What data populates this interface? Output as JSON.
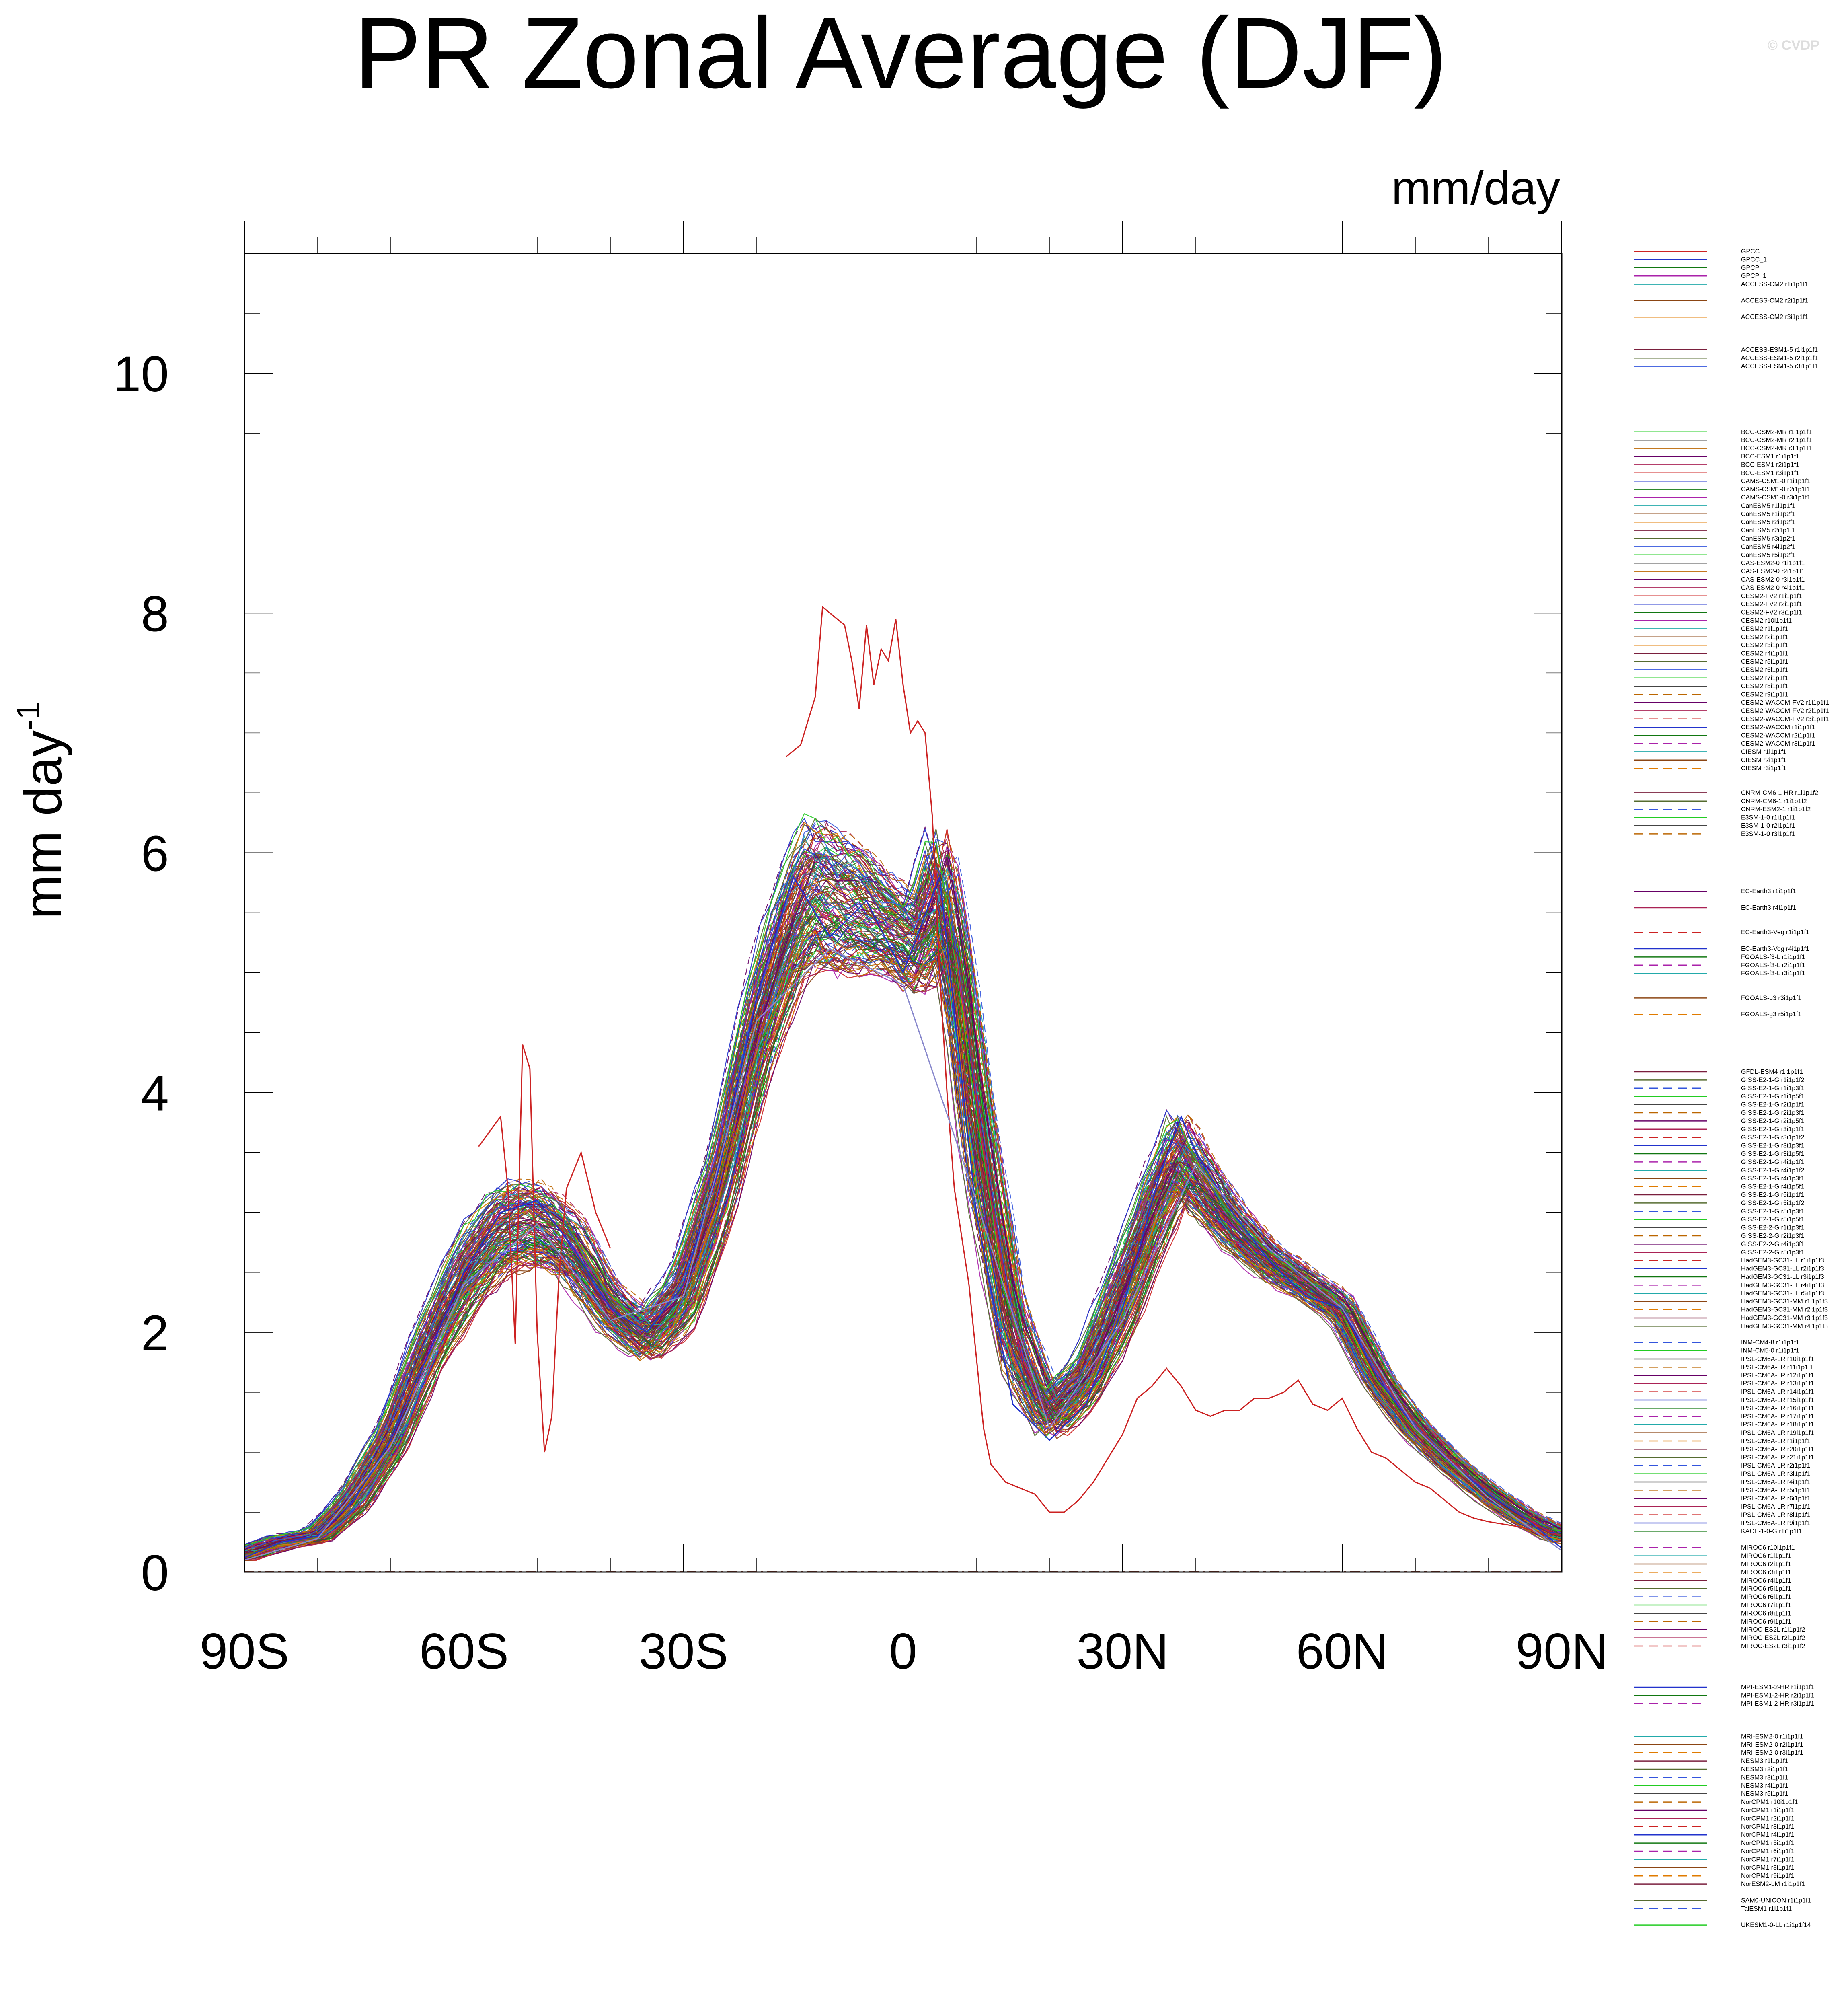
{
  "chart_data": {
    "type": "line",
    "title": "PR Zonal Average (DJF)",
    "units": "mm/day",
    "ylabel": "mm day",
    "ylabel_superscript": "-1",
    "xlim": [
      -90,
      90
    ],
    "ylim": [
      0,
      11
    ],
    "xticks": [
      {
        "value": -90,
        "label": "90S"
      },
      {
        "value": -60,
        "label": "60S"
      },
      {
        "value": -30,
        "label": "30S"
      },
      {
        "value": 0,
        "label": "0"
      },
      {
        "value": 30,
        "label": "30N"
      },
      {
        "value": 60,
        "label": "60N"
      },
      {
        "value": 90,
        "label": "90N"
      }
    ],
    "yticks": [
      0,
      2,
      4,
      6,
      8,
      10
    ],
    "yticks_minor_step": 0.5,
    "grid": false,
    "legend_position": "right",
    "reference_series": [
      {
        "name": "GPCC",
        "color": "#cc2222",
        "x": [
          -58,
          -55,
          -54,
          -53,
          -52,
          -51,
          -50,
          -49,
          -48,
          -47,
          -46,
          -44,
          -42,
          -40
        ],
        "values": [
          3.55,
          3.8,
          3.2,
          1.9,
          4.4,
          4.2,
          2.0,
          1.0,
          1.3,
          2.5,
          3.2,
          3.5,
          3.0,
          2.7
        ]
      },
      {
        "name": "GPCC_1",
        "color": "#cc2222",
        "x": [
          -16,
          -14,
          -12,
          -11,
          -10,
          -9,
          -8,
          -7,
          -6,
          -5,
          -4,
          -3,
          -2,
          -1,
          0,
          1,
          2,
          3,
          4,
          5,
          6,
          7,
          8,
          9,
          10,
          11,
          12,
          14,
          16,
          18,
          20,
          22,
          24,
          26,
          28,
          30,
          32,
          34,
          36,
          38,
          40,
          42,
          44,
          46,
          48,
          50,
          52,
          54,
          56,
          58,
          60,
          62,
          64,
          66,
          68,
          70,
          72,
          74,
          76,
          78,
          80,
          82,
          84,
          86,
          88
        ],
        "values": [
          6.8,
          6.9,
          7.3,
          8.05,
          8.0,
          7.95,
          7.9,
          7.6,
          7.2,
          7.9,
          7.4,
          7.7,
          7.6,
          7.95,
          7.4,
          7.0,
          7.1,
          7.0,
          6.3,
          5.0,
          4.0,
          3.2,
          2.8,
          2.4,
          1.8,
          1.2,
          0.9,
          0.75,
          0.7,
          0.65,
          0.5,
          0.5,
          0.6,
          0.75,
          0.95,
          1.15,
          1.45,
          1.55,
          1.7,
          1.55,
          1.35,
          1.3,
          1.35,
          1.35,
          1.45,
          1.45,
          1.5,
          1.6,
          1.4,
          1.35,
          1.45,
          1.2,
          1.0,
          0.95,
          0.85,
          0.75,
          0.7,
          0.6,
          0.5,
          0.45,
          0.42,
          0.4,
          0.38,
          0.35,
          0.3
        ]
      },
      {
        "name": "GPCP",
        "color": "#2233cc",
        "x": [
          -90,
          -85,
          -80,
          -75,
          -70,
          -65,
          -60,
          -55,
          -50,
          -45,
          -40,
          -35,
          -30,
          -25,
          -20,
          -15,
          -10,
          -5,
          0,
          5,
          10,
          15,
          20,
          25,
          30,
          35,
          38,
          40,
          45,
          50,
          55,
          60,
          65,
          70,
          75,
          80,
          85,
          90
        ],
        "values": [
          0.12,
          0.25,
          0.3,
          0.6,
          1.1,
          1.8,
          2.5,
          3.0,
          3.1,
          2.7,
          2.2,
          2.0,
          2.4,
          3.4,
          4.8,
          5.8,
          5.3,
          5.6,
          5.0,
          5.8,
          3.0,
          1.4,
          1.1,
          1.4,
          2.2,
          3.3,
          3.8,
          3.5,
          3.0,
          2.6,
          2.3,
          2.2,
          1.6,
          1.2,
          0.9,
          0.65,
          0.45,
          0.2
        ]
      },
      {
        "name": "GPCP_1",
        "color": "#8888cc",
        "x": [
          -90,
          -80,
          -70,
          -60,
          -50,
          -40,
          -30,
          -20,
          -10,
          0,
          10,
          20,
          30,
          40,
          50,
          60,
          70,
          80,
          90
        ],
        "values": [
          0.1,
          0.28,
          1.05,
          2.4,
          2.9,
          2.1,
          2.3,
          4.6,
          5.2,
          4.9,
          3.1,
          1.2,
          2.1,
          3.4,
          2.7,
          2.2,
          1.2,
          0.62,
          0.18
        ]
      }
    ],
    "ensemble_envelope": {
      "x": [
        -90,
        -85,
        -80,
        -75,
        -70,
        -65,
        -60,
        -55,
        -52,
        -50,
        -47,
        -45,
        -40,
        -35,
        -30,
        -25,
        -20,
        -15,
        -12,
        -10,
        -5,
        -2,
        0,
        2,
        4,
        5,
        6,
        8,
        10,
        15,
        20,
        25,
        30,
        35,
        38,
        40,
        45,
        50,
        55,
        60,
        65,
        70,
        75,
        80,
        85,
        90
      ],
      "center": [
        0.15,
        0.25,
        0.3,
        0.6,
        1.1,
        1.85,
        2.45,
        2.85,
        2.9,
        2.9,
        2.8,
        2.7,
        2.2,
        1.95,
        2.3,
        3.2,
        4.5,
        5.4,
        5.7,
        5.6,
        5.5,
        5.4,
        5.3,
        5.2,
        5.5,
        5.7,
        5.5,
        4.8,
        3.8,
        2.0,
        1.3,
        1.6,
        2.3,
        3.1,
        3.5,
        3.3,
        2.9,
        2.6,
        2.4,
        2.2,
        1.6,
        1.2,
        0.9,
        0.65,
        0.45,
        0.3
      ],
      "spread": [
        0.05,
        0.05,
        0.05,
        0.1,
        0.15,
        0.2,
        0.3,
        0.35,
        0.35,
        0.35,
        0.3,
        0.3,
        0.2,
        0.2,
        0.25,
        0.3,
        0.4,
        0.5,
        0.6,
        0.6,
        0.5,
        0.4,
        0.4,
        0.4,
        0.5,
        0.55,
        0.5,
        0.5,
        0.6,
        0.35,
        0.2,
        0.2,
        0.3,
        0.3,
        0.35,
        0.3,
        0.2,
        0.15,
        0.12,
        0.12,
        0.1,
        0.08,
        0.06,
        0.06,
        0.06,
        0.06
      ],
      "member_count": 150
    },
    "legend_groups": [
      {
        "entries": [
          "GPCC",
          "GPCC_1",
          "GPCP",
          "GPCP_1",
          "ACCESS-CM2 r1i1p1f1"
        ],
        "gap_after": 1
      },
      {
        "entries": [
          "ACCESS-CM2 r2i1p1f1"
        ],
        "gap_after": 1
      },
      {
        "entries": [
          "ACCESS-CM2 r3i1p1f1"
        ],
        "gap_after": 3
      },
      {
        "entries": [
          "ACCESS-ESM1-5 r1i1p1f1",
          "ACCESS-ESM1-5 r2i1p1f1",
          "ACCESS-ESM1-5 r3i1p1f1"
        ],
        "gap_after": 7
      },
      {
        "entries": [
          "BCC-CSM2-MR r1i1p1f1",
          "BCC-CSM2-MR r2i1p1f1",
          "BCC-CSM2-MR r3i1p1f1",
          "BCC-ESM1 r1i1p1f1",
          "BCC-ESM1 r2i1p1f1",
          "BCC-ESM1 r3i1p1f1",
          "CAMS-CSM1-0 r1i1p1f1",
          "CAMS-CSM1-0 r2i1p1f1",
          "CAMS-CSM1-0 r3i1p1f1",
          "CanESM5 r1i1p1f1",
          "CanESM5 r1i1p2f1",
          "CanESM5 r2i1p2f1",
          "CanESM5 r2i1p1f1",
          "CanESM5 r3i1p2f1",
          "CanESM5 r4i1p2f1",
          "CanESM5 r5i1p2f1",
          "CAS-ESM2-0 r1i1p1f1",
          "CAS-ESM2-0 r2i1p1f1",
          "CAS-ESM2-0 r3i1p1f1",
          "CAS-ESM2-0 r4i1p1f1",
          "CESM2-FV2 r1i1p1f1",
          "CESM2-FV2 r2i1p1f1",
          "CESM2-FV2 r3i1p1f1",
          "CESM2 r10i1p1f1",
          "CESM2 r1i1p1f1",
          "CESM2 r2i1p1f1",
          "CESM2 r3i1p1f1",
          "CESM2 r4i1p1f1",
          "CESM2 r5i1p1f1",
          "CESM2 r6i1p1f1",
          "CESM2 r7i1p1f1",
          "CESM2 r8i1p1f1",
          "CESM2 r9i1p1f1",
          "CESM2-WACCM-FV2 r1i1p1f1",
          "CESM2-WACCM-FV2 r2i1p1f1",
          "CESM2-WACCM-FV2 r3i1p1f1",
          "CESM2-WACCM r1i1p1f1",
          "CESM2-WACCM r2i1p1f1",
          "CESM2-WACCM r3i1p1f1",
          "CIESM r1i1p1f1",
          "CIESM r2i1p1f1",
          "CIESM r3i1p1f1"
        ],
        "gap_after": 2
      },
      {
        "entries": [
          "CNRM-CM6-1-HR r1i1p1f2",
          "CNRM-CM6-1 r1i1p1f2",
          "CNRM-ESM2-1 r1i1p1f2",
          "E3SM-1-0 r1i1p1f1",
          "E3SM-1-0 r2i1p1f1",
          "E3SM-1-0 r3i1p1f1"
        ],
        "gap_after": 6
      },
      {
        "entries": [
          "EC-Earth3 r1i1p1f1"
        ],
        "gap_after": 1
      },
      {
        "entries": [
          "EC-Earth3 r4i1p1f1"
        ],
        "gap_after": 2
      },
      {
        "entries": [
          "EC-Earth3-Veg r1i1p1f1"
        ],
        "gap_after": 1
      },
      {
        "entries": [
          "EC-Earth3-Veg r4i1p1f1",
          "FGOALS-f3-L r1i1p1f1",
          "FGOALS-f3-L r2i1p1f1",
          "FGOALS-f3-L r3i1p1f1"
        ],
        "gap_after": 2
      },
      {
        "entries": [
          "FGOALS-g3 r3i1p1f1"
        ],
        "gap_after": 1
      },
      {
        "entries": [
          "FGOALS-g3 r5i1p1f1"
        ],
        "gap_after": 6
      },
      {
        "entries": [
          "GFDL-ESM4 r1i1p1f1",
          "GISS-E2-1-G r1i1p1f2",
          "GISS-E2-1-G r1i1p3f1",
          "GISS-E2-1-G r1i1p5f1",
          "GISS-E2-1-G r2i1p1f1",
          "GISS-E2-1-G r2i1p3f1",
          "GISS-E2-1-G r2i1p5f1",
          "GISS-E2-1-G r3i1p1f1",
          "GISS-E2-1-G r3i1p1f2",
          "GISS-E2-1-G r3i1p3f1",
          "GISS-E2-1-G r3i1p5f1",
          "GISS-E2-1-G r4i1p1f1",
          "GISS-E2-1-G r4i1p1f2",
          "GISS-E2-1-G r4i1p3f1",
          "GISS-E2-1-G r4i1p5f1",
          "GISS-E2-1-G r5i1p1f1",
          "GISS-E2-1-G r5i1p1f2",
          "GISS-E2-1-G r5i1p3f1",
          "GISS-E2-1-G r5i1p5f1",
          "GISS-E2-2-G r1i1p3f1",
          "GISS-E2-2-G r2i1p3f1",
          "GISS-E2-2-G r4i1p3f1",
          "GISS-E2-2-G r5i1p3f1",
          "HadGEM3-GC31-LL r1i1p1f3",
          "HadGEM3-GC31-LL r2i1p1f3",
          "HadGEM3-GC31-LL r3i1p1f3",
          "HadGEM3-GC31-LL r4i1p1f3",
          "HadGEM3-GC31-LL r5i1p1f3",
          "HadGEM3-GC31-MM r1i1p1f3",
          "HadGEM3-GC31-MM r2i1p1f3",
          "HadGEM3-GC31-MM r3i1p1f3",
          "HadGEM3-GC31-MM r4i1p1f3"
        ],
        "gap_after": 1
      },
      {
        "entries": [
          "INM-CM4-8 r1i1p1f1",
          "INM-CM5-0 r1i1p1f1",
          "IPSL-CM6A-LR r10i1p1f1",
          "IPSL-CM6A-LR r11i1p1f1",
          "IPSL-CM6A-LR r12i1p1f1",
          "IPSL-CM6A-LR r13i1p1f1",
          "IPSL-CM6A-LR r14i1p1f1",
          "IPSL-CM6A-LR r15i1p1f1",
          "IPSL-CM6A-LR r16i1p1f1",
          "IPSL-CM6A-LR r17i1p1f1",
          "IPSL-CM6A-LR r18i1p1f1",
          "IPSL-CM6A-LR r19i1p1f1",
          "IPSL-CM6A-LR r1i1p1f1",
          "IPSL-CM6A-LR r20i1p1f1",
          "IPSL-CM6A-LR r21i1p1f1",
          "IPSL-CM6A-LR r2i1p1f1",
          "IPSL-CM6A-LR r3i1p1f1",
          "IPSL-CM6A-LR r4i1p1f1",
          "IPSL-CM6A-LR r5i1p1f1",
          "IPSL-CM6A-LR r6i1p1f1",
          "IPSL-CM6A-LR r7i1p1f1",
          "IPSL-CM6A-LR r8i1p1f1",
          "IPSL-CM6A-LR r9i1p1f1",
          "KACE-1-0-G r1i1p1f1"
        ],
        "gap_after": 1
      },
      {
        "entries": [
          "MIROC6 r10i1p1f1",
          "MIROC6 r1i1p1f1",
          "MIROC6 r2i1p1f1",
          "MIROC6 r3i1p1f1",
          "MIROC6 r4i1p1f1",
          "MIROC6 r5i1p1f1",
          "MIROC6 r6i1p1f1",
          "MIROC6 r7i1p1f1",
          "MIROC6 r8i1p1f1",
          "MIROC6 r9i1p1f1",
          "MIROC-ES2L r1i1p1f2",
          "MIROC-ES2L r2i1p1f2",
          "MIROC-ES2L r3i1p1f2"
        ],
        "gap_after": 4
      },
      {
        "entries": [
          "MPI-ESM1-2-HR r1i1p1f1",
          "MPI-ESM1-2-HR r2i1p1f1",
          "MPI-ESM1-2-HR r3i1p1f1"
        ],
        "gap_after": 3
      },
      {
        "entries": [
          "MRI-ESM2-0 r1i1p1f1",
          "MRI-ESM2-0 r2i1p1f1",
          "MRI-ESM2-0 r3i1p1f1",
          "NESM3 r1i1p1f1",
          "NESM3 r2i1p1f1",
          "NESM3 r3i1p1f1",
          "NESM3 r4i1p1f1",
          "NESM3 r5i1p1f1",
          "NorCPM1 r10i1p1f1",
          "NorCPM1 r1i1p1f1",
          "NorCPM1 r2i1p1f1",
          "NorCPM1 r3i1p1f1",
          "NorCPM1 r4i1p1f1",
          "NorCPM1 r5i1p1f1",
          "NorCPM1 r6i1p1f1",
          "NorCPM1 r7i1p1f1",
          "NorCPM1 r8i1p1f1",
          "NorCPM1 r9i1p1f1",
          "NorESM2-LM r1i1p1f1"
        ],
        "gap_after": 1
      },
      {
        "entries": [
          "SAM0-UNICON r1i1p1f1",
          "TaiESM1 r1i1p1f1"
        ],
        "gap_after": 1
      },
      {
        "entries": [
          "UKESM1-0-LL r1i1p1f14"
        ],
        "gap_after": 0
      }
    ],
    "line_palette": [
      "#cc2222",
      "#2233cc",
      "#117711",
      "#aa22aa",
      "#22aaaa",
      "#8b4513",
      "#e07b00",
      "#7a1f3d",
      "#556b2f",
      "#3355dd",
      "#22cc22",
      "#444444",
      "#bb6600",
      "#660066",
      "#aa2255"
    ]
  },
  "watermark": "© CVDP"
}
